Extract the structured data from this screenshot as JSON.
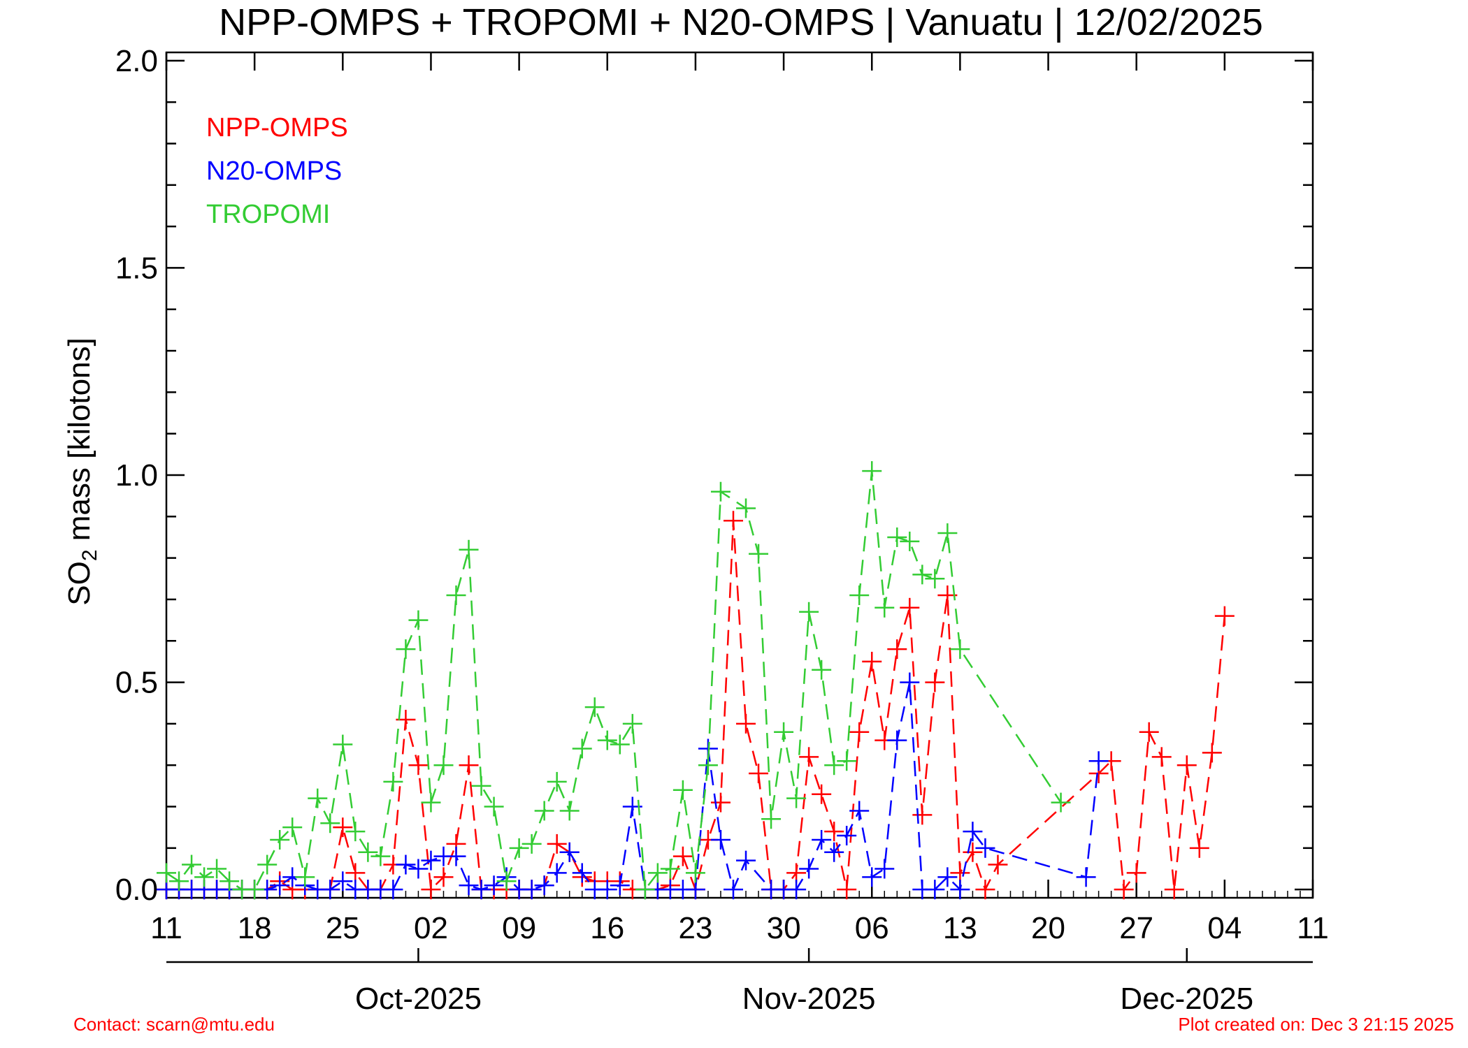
{
  "chart_data": {
    "type": "line",
    "title": "NPP-OMPS + TROPOMI + N20-OMPS | Vanuatu | 12/02/2025",
    "ylabel": "SO",
    "ylabel_sub": "2",
    "ylabel_rest": " mass [kilotons]",
    "xlabel": "",
    "xlim": [
      "2025-09-11",
      "2025-12-11"
    ],
    "ylim": [
      -0.02,
      2.02
    ],
    "y_ticks": [
      0.0,
      0.5,
      1.0,
      1.5,
      2.0
    ],
    "y_tick_labels": [
      "0.0",
      "0.5",
      "1.0",
      "1.5",
      "2.0"
    ],
    "y_minor_step": 0.1,
    "x_ticks": [
      "2025-09-11",
      "2025-09-18",
      "2025-09-25",
      "2025-10-02",
      "2025-10-09",
      "2025-10-16",
      "2025-10-23",
      "2025-10-30",
      "2025-11-06",
      "2025-11-13",
      "2025-11-20",
      "2025-11-27",
      "2025-12-04",
      "2025-12-11"
    ],
    "x_tick_labels": [
      "11",
      "18",
      "25",
      "02",
      "09",
      "16",
      "23",
      "30",
      "06",
      "13",
      "20",
      "27",
      "04",
      "11"
    ],
    "month_ticks": [
      "2025-10-01",
      "2025-11-01",
      "2025-12-01"
    ],
    "month_labels": [
      {
        "date": "2025-10-01",
        "label": "Oct-2025"
      },
      {
        "date": "2025-11-01",
        "label": "Nov-2025"
      },
      {
        "date": "2025-12-01",
        "label": "Dec-2025"
      }
    ],
    "grid": false,
    "legend_position": "top-left",
    "series": [
      {
        "name": "NPP-OMPS",
        "color": "#ff0000",
        "points": [
          [
            "2025-09-11",
            0
          ],
          [
            "2025-09-12",
            0
          ],
          [
            "2025-09-13",
            0
          ],
          [
            "2025-09-14",
            0
          ],
          [
            "2025-09-15",
            0
          ],
          [
            "2025-09-16",
            0
          ],
          [
            "2025-09-17",
            0
          ],
          [
            "2025-09-18",
            0
          ],
          [
            "2025-09-19",
            0
          ],
          [
            "2025-09-20",
            0.02
          ],
          [
            "2025-09-21",
            0
          ],
          [
            "2025-09-22",
            0
          ],
          [
            "2025-09-23",
            0
          ],
          [
            "2025-09-24",
            0
          ],
          [
            "2025-09-25",
            0.15
          ],
          [
            "2025-09-26",
            0.04
          ],
          [
            "2025-09-27",
            0
          ],
          [
            "2025-09-28",
            0
          ],
          [
            "2025-09-29",
            0.06
          ],
          [
            "2025-09-30",
            0.41
          ],
          [
            "2025-10-01",
            0.3
          ],
          [
            "2025-10-02",
            0
          ],
          [
            "2025-10-03",
            0.03
          ],
          [
            "2025-10-04",
            0.11
          ],
          [
            "2025-10-05",
            0.3
          ],
          [
            "2025-10-06",
            0
          ],
          [
            "2025-10-07",
            0
          ],
          [
            "2025-10-08",
            0
          ],
          [
            "2025-10-09",
            0
          ],
          [
            "2025-10-10",
            0
          ],
          [
            "2025-10-11",
            0.01
          ],
          [
            "2025-10-12",
            0.11
          ],
          [
            "2025-10-13",
            0.09
          ],
          [
            "2025-10-14",
            0.03
          ],
          [
            "2025-10-15",
            0.02
          ],
          [
            "2025-10-16",
            0.02
          ],
          [
            "2025-10-17",
            0.02
          ],
          [
            "2025-10-18",
            0
          ],
          [
            "2025-10-19",
            0
          ],
          [
            "2025-10-20",
            0
          ],
          [
            "2025-10-21",
            0.01
          ],
          [
            "2025-10-22",
            0.08
          ],
          [
            "2025-10-23",
            0
          ],
          [
            "2025-10-24",
            0.12
          ],
          [
            "2025-10-25",
            0.21
          ],
          [
            "2025-10-26",
            0.89
          ],
          [
            "2025-10-27",
            0.4
          ],
          [
            "2025-10-28",
            0.28
          ],
          [
            "2025-10-29",
            0
          ],
          [
            "2025-10-30",
            0
          ],
          [
            "2025-10-31",
            0.04
          ],
          [
            "2025-11-01",
            0.32
          ],
          [
            "2025-11-02",
            0.23
          ],
          [
            "2025-11-03",
            0.14
          ],
          [
            "2025-11-04",
            0
          ],
          [
            "2025-11-05",
            0.38
          ],
          [
            "2025-11-06",
            0.55
          ],
          [
            "2025-11-07",
            0.36
          ],
          [
            "2025-11-08",
            0.58
          ],
          [
            "2025-11-09",
            0.68
          ],
          [
            "2025-11-10",
            0.18
          ],
          [
            "2025-11-11",
            0.5
          ],
          [
            "2025-11-12",
            0.71
          ],
          [
            "2025-11-13",
            0.04
          ],
          [
            "2025-11-14",
            0.09
          ],
          [
            "2025-11-15",
            0
          ],
          [
            "2025-11-16",
            0.06
          ],
          [
            "2025-11-24",
            0.28
          ],
          [
            "2025-11-25",
            0.31
          ],
          [
            "2025-11-26",
            0
          ],
          [
            "2025-11-27",
            0.04
          ],
          [
            "2025-11-28",
            0.38
          ],
          [
            "2025-11-29",
            0.32
          ],
          [
            "2025-11-30",
            0
          ],
          [
            "2025-12-01",
            0.3
          ],
          [
            "2025-12-02",
            0.1
          ],
          [
            "2025-12-03",
            0.33
          ],
          [
            "2025-12-04",
            0.66
          ]
        ]
      },
      {
        "name": "N20-OMPS",
        "color": "#0000ff",
        "points": [
          [
            "2025-09-11",
            0
          ],
          [
            "2025-09-12",
            0
          ],
          [
            "2025-09-13",
            0
          ],
          [
            "2025-09-14",
            0
          ],
          [
            "2025-09-15",
            0
          ],
          [
            "2025-09-16",
            0
          ],
          [
            "2025-09-17",
            0
          ],
          [
            "2025-09-18",
            0
          ],
          [
            "2025-09-19",
            0
          ],
          [
            "2025-09-20",
            0.01
          ],
          [
            "2025-09-21",
            0.03
          ],
          [
            "2025-09-22",
            0.01
          ],
          [
            "2025-09-23",
            0
          ],
          [
            "2025-09-24",
            0
          ],
          [
            "2025-09-25",
            0.02
          ],
          [
            "2025-09-26",
            0
          ],
          [
            "2025-09-27",
            0
          ],
          [
            "2025-09-28",
            0
          ],
          [
            "2025-09-29",
            0
          ],
          [
            "2025-09-30",
            0.06
          ],
          [
            "2025-10-01",
            0.05
          ],
          [
            "2025-10-02",
            0.07
          ],
          [
            "2025-10-03",
            0.08
          ],
          [
            "2025-10-04",
            0.08
          ],
          [
            "2025-10-05",
            0.01
          ],
          [
            "2025-10-06",
            0
          ],
          [
            "2025-10-07",
            0.01
          ],
          [
            "2025-10-08",
            0.03
          ],
          [
            "2025-10-09",
            0
          ],
          [
            "2025-10-10",
            0
          ],
          [
            "2025-10-11",
            0.01
          ],
          [
            "2025-10-12",
            0.04
          ],
          [
            "2025-10-13",
            0.09
          ],
          [
            "2025-10-14",
            0.04
          ],
          [
            "2025-10-15",
            0
          ],
          [
            "2025-10-16",
            0
          ],
          [
            "2025-10-17",
            0.01
          ],
          [
            "2025-10-18",
            0.2
          ],
          [
            "2025-10-19",
            0
          ],
          [
            "2025-10-20",
            0
          ],
          [
            "2025-10-21",
            0
          ],
          [
            "2025-10-22",
            0
          ],
          [
            "2025-10-23",
            0
          ],
          [
            "2025-10-24",
            0.34
          ],
          [
            "2025-10-25",
            0.12
          ],
          [
            "2025-10-26",
            0
          ],
          [
            "2025-10-27",
            0.07
          ],
          [
            "2025-10-29",
            0
          ],
          [
            "2025-10-30",
            0
          ],
          [
            "2025-10-31",
            0
          ],
          [
            "2025-11-01",
            0.05
          ],
          [
            "2025-11-02",
            0.12
          ],
          [
            "2025-11-03",
            0.09
          ],
          [
            "2025-11-04",
            0.13
          ],
          [
            "2025-11-05",
            0.19
          ],
          [
            "2025-11-06",
            0.03
          ],
          [
            "2025-11-07",
            0.05
          ],
          [
            "2025-11-08",
            0.36
          ],
          [
            "2025-11-09",
            0.5
          ],
          [
            "2025-11-10",
            0
          ],
          [
            "2025-11-11",
            0
          ],
          [
            "2025-11-12",
            0.03
          ],
          [
            "2025-11-13",
            0
          ],
          [
            "2025-11-14",
            0.14
          ],
          [
            "2025-11-15",
            0.1
          ],
          [
            "2025-11-23",
            0.03
          ],
          [
            "2025-11-24",
            0.31
          ]
        ]
      },
      {
        "name": "TROPOMI",
        "color": "#33cc33",
        "points": [
          [
            "2025-09-11",
            0.04
          ],
          [
            "2025-09-12",
            0.02
          ],
          [
            "2025-09-13",
            0.06
          ],
          [
            "2025-09-14",
            0.03
          ],
          [
            "2025-09-15",
            0.05
          ],
          [
            "2025-09-16",
            0.02
          ],
          [
            "2025-09-17",
            0
          ],
          [
            "2025-09-18",
            0
          ],
          [
            "2025-09-19",
            0.06
          ],
          [
            "2025-09-20",
            0.12
          ],
          [
            "2025-09-21",
            0.15
          ],
          [
            "2025-09-22",
            0.03
          ],
          [
            "2025-09-23",
            0.22
          ],
          [
            "2025-09-24",
            0.16
          ],
          [
            "2025-09-25",
            0.35
          ],
          [
            "2025-09-26",
            0.14
          ],
          [
            "2025-09-27",
            0.09
          ],
          [
            "2025-09-28",
            0.08
          ],
          [
            "2025-09-29",
            0.26
          ],
          [
            "2025-09-30",
            0.58
          ],
          [
            "2025-10-01",
            0.65
          ],
          [
            "2025-10-02",
            0.21
          ],
          [
            "2025-10-03",
            0.3
          ],
          [
            "2025-10-04",
            0.71
          ],
          [
            "2025-10-05",
            0.82
          ],
          [
            "2025-10-06",
            0.25
          ],
          [
            "2025-10-07",
            0.2
          ],
          [
            "2025-10-08",
            0.02
          ],
          [
            "2025-10-09",
            0.1
          ],
          [
            "2025-10-10",
            0.11
          ],
          [
            "2025-10-11",
            0.19
          ],
          [
            "2025-10-12",
            0.26
          ],
          [
            "2025-10-13",
            0.19
          ],
          [
            "2025-10-14",
            0.34
          ],
          [
            "2025-10-15",
            0.44
          ],
          [
            "2025-10-16",
            0.36
          ],
          [
            "2025-10-17",
            0.35
          ],
          [
            "2025-10-18",
            0.4
          ],
          [
            "2025-10-19",
            0
          ],
          [
            "2025-10-20",
            0.04
          ],
          [
            "2025-10-21",
            0.05
          ],
          [
            "2025-10-22",
            0.24
          ],
          [
            "2025-10-23",
            0.04
          ],
          [
            "2025-10-24",
            0.3
          ],
          [
            "2025-10-25",
            0.96
          ],
          [
            "2025-10-27",
            0.92
          ],
          [
            "2025-10-28",
            0.81
          ],
          [
            "2025-10-29",
            0.17
          ],
          [
            "2025-10-30",
            0.38
          ],
          [
            "2025-10-31",
            0.22
          ],
          [
            "2025-11-01",
            0.67
          ],
          [
            "2025-11-02",
            0.53
          ],
          [
            "2025-11-03",
            0.3
          ],
          [
            "2025-11-04",
            0.31
          ],
          [
            "2025-11-05",
            0.71
          ],
          [
            "2025-11-06",
            1.01
          ],
          [
            "2025-11-07",
            0.68
          ],
          [
            "2025-11-08",
            0.85
          ],
          [
            "2025-11-09",
            0.84
          ],
          [
            "2025-11-10",
            0.76
          ],
          [
            "2025-11-11",
            0.75
          ],
          [
            "2025-11-12",
            0.86
          ],
          [
            "2025-11-13",
            0.58
          ],
          [
            "2025-11-21",
            0.21
          ]
        ]
      }
    ]
  },
  "footer": {
    "contact": "Contact: scarn@mtu.edu",
    "created": "Plot created on:  Dec  3 21:15 2025"
  }
}
